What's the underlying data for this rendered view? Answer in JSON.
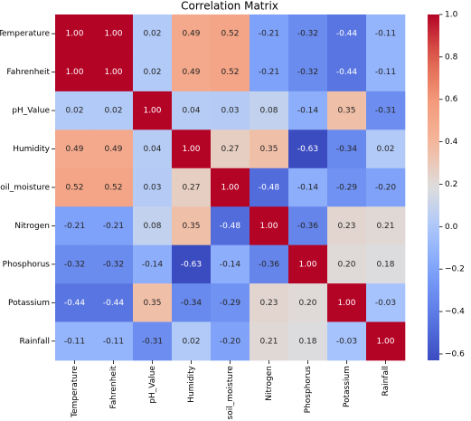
{
  "chart_data": {
    "type": "heatmap",
    "title": "Correlation Matrix",
    "categories": [
      "Temperature",
      "Fahrenheit",
      "pH_Value",
      "Humidity",
      "soil_moisture",
      "Nitrogen",
      "Phosphorus",
      "Potassium",
      "Rainfall"
    ],
    "values": [
      [
        1,
        1,
        0.02,
        0.49,
        0.52,
        -0.21,
        -0.32,
        -0.44,
        -0.11
      ],
      [
        1,
        1,
        0.02,
        0.49,
        0.52,
        -0.21,
        -0.32,
        -0.44,
        -0.11
      ],
      [
        0.02,
        0.02,
        1,
        0.04,
        0.03,
        0.08,
        -0.14,
        0.35,
        -0.31
      ],
      [
        0.49,
        0.49,
        0.04,
        1,
        0.27,
        0.35,
        -0.63,
        -0.34,
        0.02
      ],
      [
        0.52,
        0.52,
        0.03,
        0.27,
        1,
        -0.48,
        -0.14,
        -0.29,
        -0.2
      ],
      [
        -0.21,
        -0.21,
        0.08,
        0.35,
        -0.48,
        1,
        -0.36,
        0.23,
        0.21
      ],
      [
        -0.32,
        -0.32,
        -0.14,
        -0.63,
        -0.14,
        -0.36,
        1,
        0.2,
        0.18
      ],
      [
        -0.44,
        -0.44,
        0.35,
        -0.34,
        -0.29,
        0.23,
        0.2,
        1,
        -0.03
      ],
      [
        -0.11,
        -0.11,
        -0.31,
        0.02,
        -0.2,
        0.21,
        0.18,
        -0.03,
        1
      ]
    ],
    "value_labels": [
      [
        "1.00",
        "1.00",
        "0.02",
        "0.49",
        "0.52",
        "-0.21",
        "-0.32",
        "-0.44",
        "-0.11"
      ],
      [
        "1.00",
        "1.00",
        "0.02",
        "0.49",
        "0.52",
        "-0.21",
        "-0.32",
        "-0.44",
        "-0.11"
      ],
      [
        "0.02",
        "0.02",
        "1.00",
        "0.04",
        "0.03",
        "0.08",
        "-0.14",
        "0.35",
        "-0.31"
      ],
      [
        "0.49",
        "0.49",
        "0.04",
        "1.00",
        "0.27",
        "0.35",
        "-0.63",
        "-0.34",
        "0.02"
      ],
      [
        "0.52",
        "0.52",
        "0.03",
        "0.27",
        "1.00",
        "-0.48",
        "-0.14",
        "-0.29",
        "-0.20"
      ],
      [
        "-0.21",
        "-0.21",
        "0.08",
        "0.35",
        "-0.48",
        "1.00",
        "-0.36",
        "0.23",
        "0.21"
      ],
      [
        "-0.32",
        "-0.32",
        "-0.14",
        "-0.63",
        "-0.14",
        "-0.36",
        "1.00",
        "0.20",
        "0.18"
      ],
      [
        "-0.44",
        "-0.44",
        "0.35",
        "-0.34",
        "-0.29",
        "0.23",
        "0.20",
        "1.00",
        "-0.03"
      ],
      [
        "-0.11",
        "-0.11",
        "-0.31",
        "0.02",
        "-0.20",
        "0.21",
        "0.18",
        "-0.03",
        "1.00"
      ]
    ],
    "colormap": "coolwarm",
    "zlim": [
      -0.63,
      1
    ],
    "zticks": [
      {
        "value": -0.6,
        "label": "−0.6"
      },
      {
        "value": -0.4,
        "label": "−0.4"
      },
      {
        "value": -0.2,
        "label": "−0.2"
      },
      {
        "value": 0,
        "label": "0.0"
      },
      0.2,
      0.4,
      0.6,
      0.8,
      {
        "value": 1,
        "label": "1.0"
      }
    ]
  }
}
